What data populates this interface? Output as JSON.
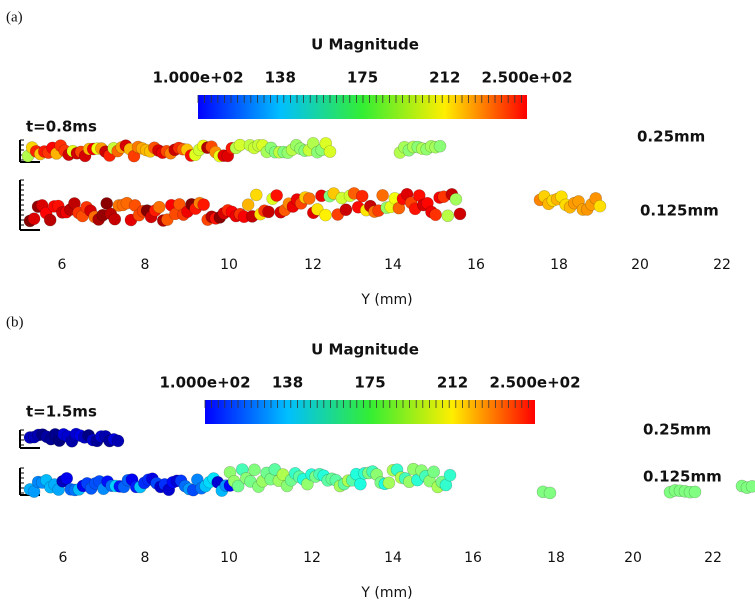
{
  "panels": [
    {
      "label": "(a)",
      "colorbar": {
        "title": "U Magnitude",
        "ticks": [
          "1.000e+02",
          "138",
          "175",
          "212",
          "2.500e+02"
        ]
      },
      "time": "t=0.8ms",
      "rows": [
        "0.25mm",
        "0.125mm"
      ],
      "x_axis": {
        "ticks": [
          "6",
          "8",
          "10",
          "12",
          "14",
          "16",
          "18",
          "20",
          "22"
        ],
        "label": "Y (mm)"
      }
    },
    {
      "label": "(b)",
      "colorbar": {
        "title": "U Magnitude",
        "ticks": [
          "1.000e+02",
          "138",
          "175",
          "212",
          "2.500e+02"
        ]
      },
      "time": "t=1.5ms",
      "rows": [
        "0.25mm",
        "0.125mm"
      ],
      "x_axis": {
        "ticks": [
          "6",
          "8",
          "10",
          "12",
          "14",
          "16",
          "18",
          "20",
          "22"
        ],
        "label": "Y (mm)"
      }
    }
  ]
}
